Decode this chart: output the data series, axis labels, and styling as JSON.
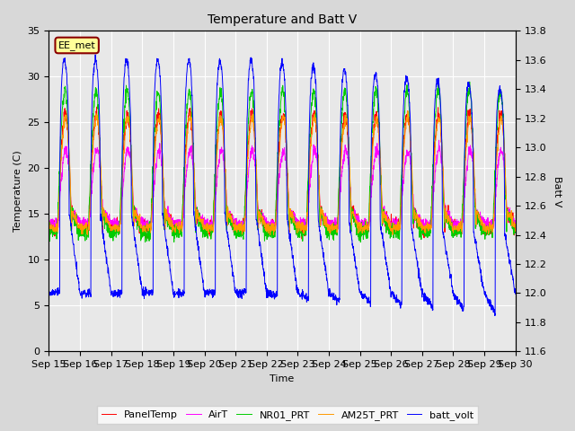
{
  "title": "Temperature and Batt V",
  "xlabel": "Time",
  "ylabel_left": "Temperature (C)",
  "ylabel_right": "Batt V",
  "annotation": "EE_met",
  "ylim_left": [
    0,
    35
  ],
  "ylim_right": [
    11.6,
    13.8
  ],
  "yticks_left": [
    0,
    5,
    10,
    15,
    20,
    25,
    30,
    35
  ],
  "yticks_right": [
    11.6,
    11.8,
    12.0,
    12.2,
    12.4,
    12.6,
    12.8,
    13.0,
    13.2,
    13.4,
    13.6,
    13.8
  ],
  "xtick_labels": [
    "Sep 15",
    "Sep 16",
    "Sep 17",
    "Sep 18",
    "Sep 19",
    "Sep 20",
    "Sep 21",
    "Sep 22",
    "Sep 23",
    "Sep 24",
    "Sep 25",
    "Sep 26",
    "Sep 27",
    "Sep 28",
    "Sep 29",
    "Sep 30"
  ],
  "series_colors": {
    "PanelTemp": "#ff0000",
    "AirT": "#ff00ff",
    "NR01_PRT": "#00cc00",
    "AM25T_PRT": "#ff9900",
    "batt_volt": "#0000ff"
  },
  "legend_labels": [
    "PanelTemp",
    "AirT",
    "NR01_PRT",
    "AM25T_PRT",
    "batt_volt"
  ],
  "background_color": "#d8d8d8",
  "plot_background": "#e8e8e8",
  "grid_color": "#ffffff",
  "n_days": 15,
  "pts_per_day": 144
}
